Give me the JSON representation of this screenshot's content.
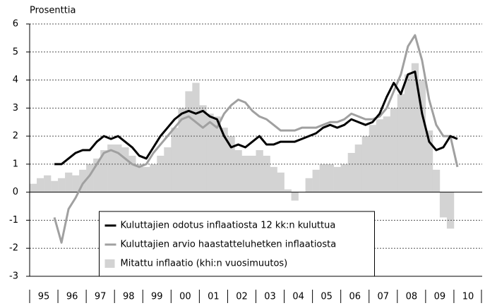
{
  "chart_data": {
    "type": "line-bar",
    "y_label": "Prosenttia",
    "x": [
      1995,
      1995.25,
      1995.5,
      1995.75,
      1996,
      1996.25,
      1996.5,
      1996.75,
      1997,
      1997.25,
      1997.5,
      1997.75,
      1998,
      1998.25,
      1998.5,
      1998.75,
      1999,
      1999.25,
      1999.5,
      1999.75,
      2000,
      2000.25,
      2000.5,
      2000.75,
      2001,
      2001.25,
      2001.5,
      2001.75,
      2002,
      2002.25,
      2002.5,
      2002.75,
      2003,
      2003.25,
      2003.5,
      2003.75,
      2004,
      2004.25,
      2004.5,
      2004.75,
      2005,
      2005.25,
      2005.5,
      2005.75,
      2006,
      2006.25,
      2006.5,
      2006.75,
      2007,
      2007.25,
      2007.5,
      2007.75,
      2008,
      2008.25,
      2008.5,
      2008.75,
      2009,
      2009.25,
      2009.5,
      2009.75,
      2010
    ],
    "series": [
      {
        "name": "Mitattu inflaatio (khi:n vuosimuutos)",
        "kind": "bar",
        "color": "#d3d3d3",
        "values": [
          0.3,
          0.5,
          0.6,
          0.4,
          0.5,
          0.7,
          0.6,
          0.8,
          1.0,
          1.2,
          1.5,
          1.7,
          1.7,
          1.6,
          1.3,
          1.0,
          0.9,
          1.0,
          1.3,
          1.6,
          2.3,
          3.0,
          3.6,
          3.9,
          3.1,
          2.8,
          2.7,
          2.3,
          2.0,
          1.5,
          1.3,
          1.3,
          1.5,
          1.3,
          0.9,
          0.7,
          0.1,
          -0.3,
          0.0,
          0.5,
          0.8,
          1.0,
          1.0,
          0.9,
          1.0,
          1.4,
          1.7,
          2.0,
          2.4,
          2.6,
          2.7,
          3.0,
          3.5,
          4.2,
          4.6,
          4.0,
          2.2,
          0.8,
          -0.9,
          -1.3,
          null
        ]
      },
      {
        "name": "Kuluttajien arvio haastatteluhetken inflaatiosta",
        "kind": "line",
        "color": "#a0a0a0",
        "values": [
          null,
          null,
          null,
          -0.9,
          -1.8,
          -0.6,
          -0.2,
          0.3,
          0.6,
          1.0,
          1.4,
          1.5,
          1.4,
          1.2,
          1.0,
          0.9,
          1.0,
          1.4,
          1.7,
          2.0,
          2.3,
          2.6,
          2.7,
          2.5,
          2.3,
          2.5,
          2.3,
          2.8,
          3.1,
          3.3,
          3.2,
          2.9,
          2.7,
          2.6,
          2.4,
          2.2,
          2.2,
          2.2,
          2.3,
          2.3,
          2.3,
          2.4,
          2.5,
          2.5,
          2.6,
          2.8,
          2.7,
          2.6,
          2.6,
          2.7,
          3.0,
          3.6,
          4.2,
          5.2,
          5.6,
          4.7,
          3.3,
          2.4,
          2.0,
          2.0,
          0.9
        ]
      },
      {
        "name": "Kuluttajien odotus inflaatiosta 12 kk:n kuluttua",
        "kind": "line",
        "color": "#000000",
        "values": [
          null,
          null,
          null,
          1.0,
          1.0,
          1.2,
          1.4,
          1.5,
          1.5,
          1.8,
          2.0,
          1.9,
          2.0,
          1.8,
          1.6,
          1.3,
          1.2,
          1.6,
          2.0,
          2.3,
          2.6,
          2.8,
          2.9,
          2.8,
          2.9,
          2.7,
          2.6,
          2.0,
          1.6,
          1.7,
          1.6,
          1.8,
          2.0,
          1.7,
          1.7,
          1.8,
          1.8,
          1.8,
          1.9,
          2.0,
          2.1,
          2.3,
          2.4,
          2.3,
          2.4,
          2.6,
          2.5,
          2.4,
          2.5,
          2.8,
          3.4,
          3.9,
          3.5,
          4.2,
          4.3,
          2.8,
          1.8,
          1.5,
          1.6,
          2.0,
          1.9
        ]
      }
    ],
    "legend_order": [
      2,
      1,
      0
    ],
    "xlim": [
      1995,
      2011
    ],
    "xticks": [
      {
        "value": 1995.5,
        "label": "95"
      },
      {
        "value": 1996.5,
        "label": "96"
      },
      {
        "value": 1997.5,
        "label": "97"
      },
      {
        "value": 1998.5,
        "label": "98"
      },
      {
        "value": 1999.5,
        "label": "99"
      },
      {
        "value": 2000.5,
        "label": "00"
      },
      {
        "value": 2001.5,
        "label": "01"
      },
      {
        "value": 2002.5,
        "label": "02"
      },
      {
        "value": 2003.5,
        "label": "03"
      },
      {
        "value": 2004.5,
        "label": "04"
      },
      {
        "value": 2005.5,
        "label": "05"
      },
      {
        "value": 2006.5,
        "label": "06"
      },
      {
        "value": 2007.5,
        "label": "07"
      },
      {
        "value": 2008.5,
        "label": "08"
      },
      {
        "value": 2009.5,
        "label": "09"
      },
      {
        "value": 2010.5,
        "label": "10"
      }
    ],
    "ylim": [
      -3,
      6
    ],
    "yticks": [
      -3,
      -2,
      -1,
      0,
      1,
      2,
      3,
      4,
      5,
      6
    ],
    "grid": true,
    "legend": "lower center"
  }
}
